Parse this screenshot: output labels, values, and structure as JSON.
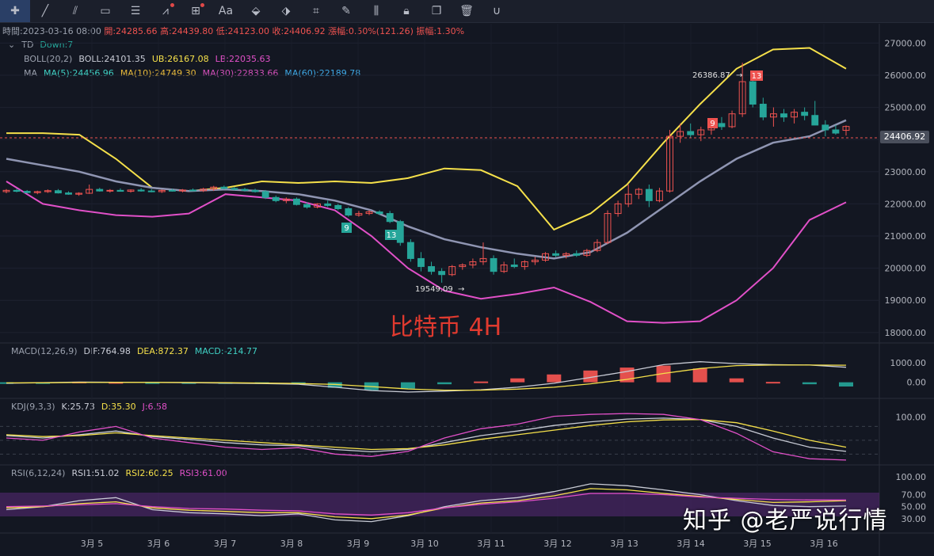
{
  "toolbar": {
    "icons": [
      "crosshair-icon",
      "trendline-icon",
      "parallel-channel-icon",
      "rectangle-icon",
      "fib-icon",
      "wave-icon",
      "measure-icon",
      "text-icon",
      "pattern-icon",
      "fib-circle-icon",
      "ruler-icon",
      "brush-icon",
      "candles-icon",
      "lock-icon",
      "clone-icon",
      "delete-icon",
      "magnet-icon"
    ],
    "text_icon_label": "Aa"
  },
  "ohlc": {
    "time": "時間:2023-03-16 08:00",
    "open": "開:24285.66",
    "high": "高:24439.80",
    "low": "低:24123.00",
    "close": "收:24406.92",
    "change": "漲幅:0.50%(121.26)",
    "amplitude": "振幅:1.30%"
  },
  "indicators": {
    "td": {
      "name": "TD",
      "value": "Down:7"
    },
    "boll": {
      "name": "BOLL(20,2)",
      "mid": "BOLL:24101.35",
      "ub": "UB:26167.08",
      "lb": "LB:22035.63"
    },
    "ma": {
      "name": "MA",
      "ma5": "MA(5):24456.96",
      "ma10": "MA(10):24749.30",
      "ma30": "MA(30):22833.66",
      "ma60": "MA(60):22189.78"
    },
    "macd": {
      "name": "MACD(12,26,9)",
      "dif": "DIF:764.98",
      "dea": "DEA:872.37",
      "macd": "MACD:-214.77"
    },
    "kdj": {
      "name": "KDJ(9,3,3)",
      "k": "K:25.73",
      "d": "D:35.30",
      "j": "J:6.58"
    },
    "rsi": {
      "name": "RSI(6,12,24)",
      "rsi1": "RSI1:51.02",
      "rsi2": "RSI2:60.25",
      "rsi3": "RSI3:61.00"
    }
  },
  "colors": {
    "up": "#26a69a",
    "down": "#ef5350",
    "boll_ub": "#f5e04a",
    "boll_lb": "#e150c8",
    "boll_mid": "#8f95b2",
    "ma5": "#3fd1c4",
    "ma10": "#e7b93b",
    "ma30": "#d24fb8",
    "ma60": "#3ea9e6"
  },
  "price_tag": "24406.92",
  "caption": "比特币 4H",
  "watermark": "知乎 @老严说行情",
  "annotations": {
    "high": "26386.87",
    "low": "19549.09",
    "td9_a": "9",
    "td13_a": "13",
    "td9_b": "9",
    "td13_b": "13"
  },
  "chart_data": {
    "type": "candlestick",
    "symbol": "BTC",
    "timeframe": "4H",
    "x_labels": [
      "3月 5",
      "3月 6",
      "3月 7",
      "3月 8",
      "3月 9",
      "3月 10",
      "3月 11",
      "3月 12",
      "3月 13",
      "3月 14",
      "3月 15",
      "3月 16"
    ],
    "price_axis": [
      "27000.00",
      "26000.00",
      "25000.00",
      "24000.00",
      "23000.00",
      "22000.00",
      "21000.00",
      "20000.00",
      "19000.00",
      "18000.00"
    ],
    "ylim": [
      17700,
      27600
    ],
    "macd_axis": [
      "1000.00",
      "0.00"
    ],
    "kdj_axis": [
      "100.00"
    ],
    "rsi_axis": [
      "100.00",
      "70.00",
      "50.00",
      "30.00"
    ],
    "candles": [
      [
        22380,
        22460,
        22330,
        22420
      ],
      [
        22420,
        22470,
        22360,
        22390
      ],
      [
        22390,
        22430,
        22320,
        22350
      ],
      [
        22350,
        22410,
        22300,
        22380
      ],
      [
        22380,
        22450,
        22340,
        22410
      ],
      [
        22410,
        22460,
        22320,
        22340
      ],
      [
        22340,
        22390,
        22280,
        22300
      ],
      [
        22300,
        22360,
        22250,
        22330
      ],
      [
        22330,
        22600,
        22310,
        22450
      ],
      [
        22450,
        22500,
        22380,
        22400
      ],
      [
        22400,
        22460,
        22350,
        22420
      ],
      [
        22420,
        22480,
        22380,
        22390
      ],
      [
        22390,
        22450,
        22350,
        22430
      ],
      [
        22430,
        22490,
        22380,
        22400
      ],
      [
        22400,
        22460,
        22360,
        22380
      ],
      [
        22380,
        22440,
        22340,
        22420
      ],
      [
        22420,
        22470,
        22380,
        22400
      ],
      [
        22400,
        22460,
        22360,
        22430
      ],
      [
        22430,
        22480,
        22390,
        22410
      ],
      [
        22410,
        22500,
        22370,
        22460
      ],
      [
        22460,
        22560,
        22400,
        22520
      ],
      [
        22520,
        22570,
        22450,
        22480
      ],
      [
        22480,
        22530,
        22420,
        22450
      ],
      [
        22450,
        22500,
        22380,
        22420
      ],
      [
        22420,
        22470,
        22350,
        22380
      ],
      [
        22380,
        22430,
        22150,
        22200
      ],
      [
        22200,
        22260,
        22050,
        22100
      ],
      [
        22100,
        22200,
        22020,
        22150
      ],
      [
        22150,
        22200,
        21950,
        21980
      ],
      [
        21980,
        22050,
        21850,
        21900
      ],
      [
        21900,
        22020,
        21860,
        22000
      ],
      [
        22000,
        22100,
        21900,
        21950
      ],
      [
        21950,
        22000,
        21800,
        21850
      ],
      [
        21850,
        21900,
        21600,
        21650
      ],
      [
        21650,
        21780,
        21600,
        21700
      ],
      [
        21700,
        21800,
        21650,
        21750
      ],
      [
        21750,
        21800,
        21650,
        21700
      ],
      [
        21700,
        21780,
        21400,
        21450
      ],
      [
        21450,
        21500,
        20700,
        20800
      ],
      [
        20800,
        20900,
        20200,
        20300
      ],
      [
        20300,
        20500,
        19900,
        20050
      ],
      [
        20050,
        20200,
        19800,
        19900
      ],
      [
        19900,
        20000,
        19549,
        19800
      ],
      [
        19800,
        20100,
        19750,
        20050
      ],
      [
        20050,
        20150,
        19950,
        20100
      ],
      [
        20100,
        20300,
        20000,
        20200
      ],
      [
        20200,
        20800,
        20100,
        20300
      ],
      [
        20300,
        20400,
        19800,
        19900
      ],
      [
        19900,
        20200,
        19850,
        20100
      ],
      [
        20100,
        20300,
        20000,
        20050
      ],
      [
        20050,
        20250,
        19950,
        20200
      ],
      [
        20200,
        20350,
        20100,
        20250
      ],
      [
        20250,
        20500,
        20200,
        20450
      ],
      [
        20450,
        20550,
        20350,
        20400
      ],
      [
        20400,
        20500,
        20300,
        20450
      ],
      [
        20450,
        20550,
        20350,
        20400
      ],
      [
        20400,
        20600,
        20350,
        20550
      ],
      [
        20550,
        20900,
        20500,
        20800
      ],
      [
        20800,
        21800,
        20750,
        21700
      ],
      [
        21700,
        22100,
        21600,
        22000
      ],
      [
        22000,
        22600,
        21900,
        22300
      ],
      [
        22300,
        22500,
        22150,
        22450
      ],
      [
        22450,
        22600,
        21900,
        22100
      ],
      [
        22100,
        22500,
        22050,
        22400
      ],
      [
        22400,
        24300,
        22350,
        24100
      ],
      [
        24100,
        24500,
        23900,
        24250
      ],
      [
        24250,
        24500,
        24050,
        24150
      ],
      [
        24150,
        24400,
        23950,
        24300
      ],
      [
        24300,
        24600,
        24150,
        24500
      ],
      [
        24500,
        24700,
        24300,
        24400
      ],
      [
        24400,
        24900,
        24350,
        24800
      ],
      [
        24800,
        26387,
        24700,
        25800
      ],
      [
        25800,
        26000,
        25000,
        25100
      ],
      [
        25100,
        25300,
        24600,
        24700
      ],
      [
        24700,
        25000,
        24400,
        24800
      ],
      [
        24800,
        24950,
        24550,
        24700
      ],
      [
        24700,
        24950,
        24500,
        24850
      ],
      [
        24850,
        25000,
        24600,
        24750
      ],
      [
        24750,
        25200,
        24500,
        24450
      ],
      [
        24450,
        24600,
        24100,
        24300
      ],
      [
        24300,
        24450,
        24150,
        24200
      ],
      [
        24286,
        24440,
        24123,
        24407
      ]
    ],
    "boll": {
      "ub": [
        24200,
        24200,
        24150,
        23400,
        22500,
        22400,
        22500,
        22700,
        22650,
        22700,
        22650,
        22800,
        23100,
        23050,
        22550,
        21200,
        21700,
        22600,
        23900,
        25100,
        26200,
        26800,
        26850,
        26200
      ],
      "mid": [
        23400,
        23200,
        23000,
        22700,
        22500,
        22400,
        22450,
        22400,
        22300,
        22100,
        21800,
        21300,
        20900,
        20650,
        20450,
        20300,
        20500,
        21100,
        21900,
        22700,
        23400,
        23900,
        24100,
        24600
      ],
      "lb": [
        22700,
        22000,
        21800,
        21650,
        21600,
        21700,
        22300,
        22200,
        22100,
        21800,
        21000,
        20000,
        19300,
        19050,
        19200,
        19400,
        18950,
        18350,
        18300,
        18350,
        19000,
        20000,
        21500,
        22050
      ]
    },
    "macd": {
      "dif": [
        -50,
        -20,
        10,
        0,
        -10,
        -20,
        -40,
        -60,
        -100,
        -250,
        -420,
        -500,
        -450,
        -380,
        -250,
        -50,
        250,
        550,
        900,
        1050,
        950,
        900,
        880,
        765
      ],
      "dea": [
        -30,
        -25,
        -10,
        -5,
        -5,
        -10,
        -20,
        -40,
        -60,
        -110,
        -220,
        -340,
        -400,
        -400,
        -350,
        -250,
        -80,
        150,
        450,
        700,
        850,
        880,
        880,
        872
      ],
      "hist": [
        -40,
        -20,
        30,
        10,
        -10,
        -20,
        -40,
        -50,
        -80,
        -280,
        -400,
        -320,
        -100,
        40,
        200,
        400,
        600,
        750,
        850,
        700,
        200,
        20,
        -100,
        -215
      ]
    },
    "kdj": {
      "k": [
        60,
        55,
        62,
        70,
        58,
        52,
        45,
        40,
        38,
        30,
        25,
        30,
        45,
        60,
        70,
        82,
        90,
        96,
        98,
        95,
        80,
        55,
        35,
        26
      ],
      "d": [
        62,
        58,
        60,
        66,
        60,
        55,
        50,
        45,
        40,
        35,
        30,
        32,
        40,
        52,
        62,
        72,
        82,
        90,
        94,
        95,
        88,
        70,
        50,
        35
      ],
      "j": [
        55,
        50,
        68,
        80,
        55,
        45,
        35,
        30,
        34,
        20,
        15,
        26,
        55,
        75,
        85,
        102,
        106,
        108,
        106,
        95,
        65,
        25,
        10,
        7
      ]
    },
    "rsi": {
      "rsi1": [
        45,
        50,
        60,
        65,
        45,
        40,
        38,
        35,
        38,
        28,
        25,
        35,
        50,
        60,
        65,
        75,
        88,
        85,
        78,
        70,
        60,
        52,
        50,
        51
      ],
      "rsi2": [
        48,
        50,
        55,
        58,
        48,
        44,
        42,
        40,
        40,
        33,
        30,
        36,
        48,
        56,
        60,
        68,
        80,
        78,
        72,
        67,
        62,
        57,
        58,
        60
      ],
      "rsi3": [
        50,
        51,
        53,
        55,
        50,
        47,
        46,
        44,
        43,
        38,
        36,
        40,
        48,
        54,
        58,
        64,
        72,
        72,
        70,
        66,
        64,
        62,
        61,
        61
      ]
    }
  }
}
